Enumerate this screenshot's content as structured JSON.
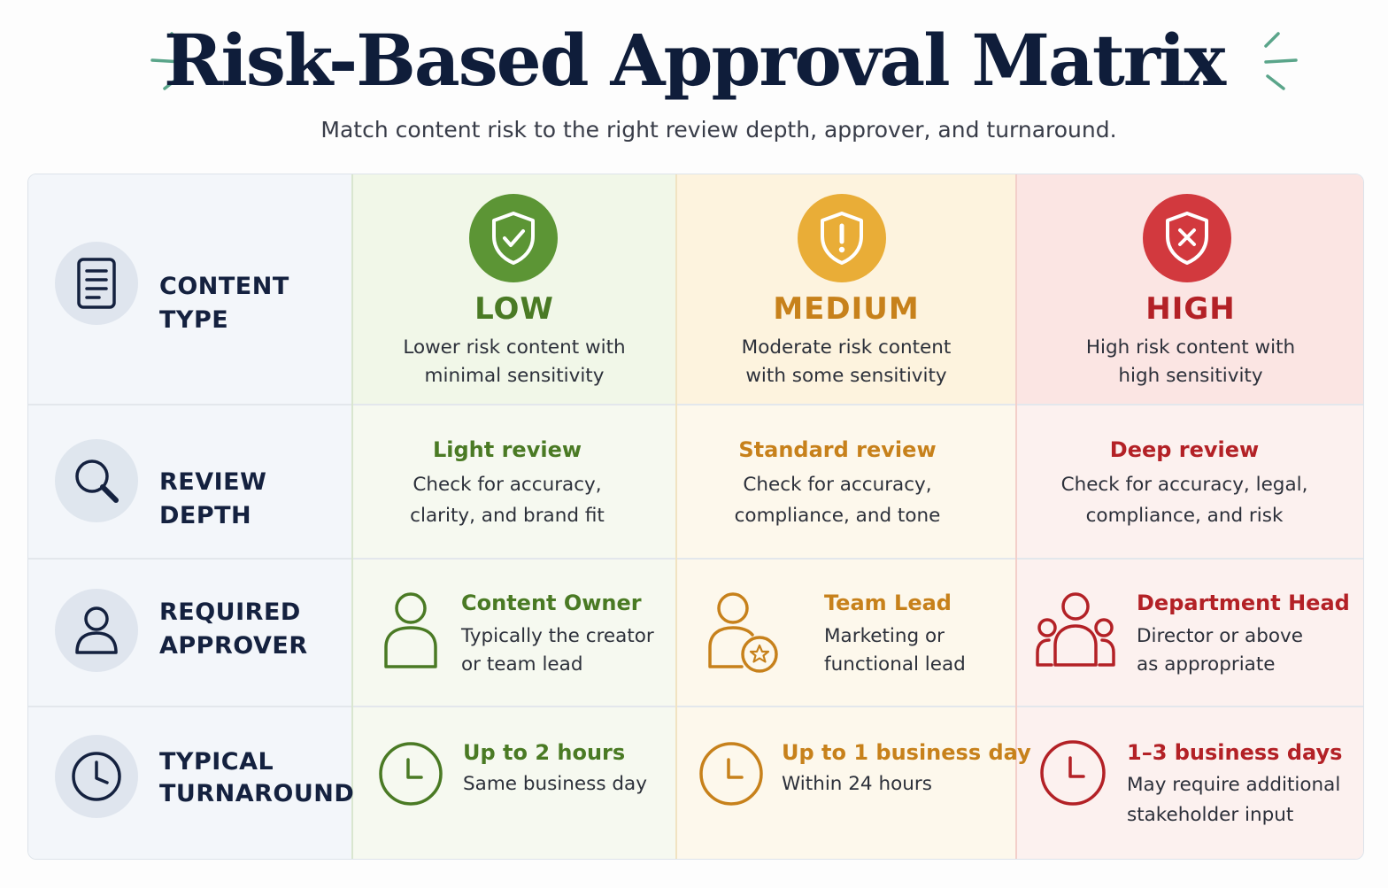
{
  "header": {
    "title": "Risk-Based Approval Matrix",
    "subtitle": "Match content risk to the right review depth, approver, and turnaround."
  },
  "colors": {
    "title": "#0f1d3a",
    "low": "#4a7a24",
    "medium": "#c7811b",
    "high": "#b32126",
    "label_circle": "#dfe5ee",
    "label_text": "#14213f"
  },
  "rows": {
    "content_type": {
      "label": "CONTENT TYPE",
      "icon": "document-icon"
    },
    "review_depth": {
      "label": "REVIEW DEPTH",
      "icon": "search-icon"
    },
    "required_approver": {
      "label_line1": "REQUIRED",
      "label_line2": "APPROVER",
      "icon": "user-icon"
    },
    "typical_turnaround": {
      "label_line1": "TYPICAL",
      "label_line2": "TURNAROUND",
      "icon": "clock-icon"
    }
  },
  "levels": {
    "low": {
      "name": "LOW",
      "badge_icon": "shield-check-icon",
      "desc_line1": "Lower risk content with",
      "desc_line2": "minimal sensitivity",
      "review_title": "Light review",
      "review_line1": "Check for accuracy,",
      "review_line2": "clarity, and brand fit",
      "approver_icon": "user-icon",
      "approver_title": "Content Owner",
      "approver_line1": "Typically the creator",
      "approver_line2": "or team lead",
      "turnaround_icon": "clock-icon",
      "turnaround_title": "Up to 2 hours",
      "turnaround_line1": "Same business day",
      "turnaround_line2": ""
    },
    "medium": {
      "name": "MEDIUM",
      "badge_icon": "shield-exclamation-icon",
      "desc_line1": "Moderate risk content",
      "desc_line2": "with some sensitivity",
      "review_title": "Standard review",
      "review_line1": "Check for accuracy,",
      "review_line2": "compliance, and tone",
      "approver_icon": "user-star-icon",
      "approver_title": "Team Lead",
      "approver_line1": "Marketing or",
      "approver_line2": "functional lead",
      "turnaround_icon": "clock-icon",
      "turnaround_title": "Up to 1 business day",
      "turnaround_line1": "Within 24 hours",
      "turnaround_line2": ""
    },
    "high": {
      "name": "HIGH",
      "badge_icon": "shield-x-icon",
      "desc_line1": "High risk content with",
      "desc_line2": "high sensitivity",
      "review_title": "Deep review",
      "review_line1": "Check for accuracy, legal,",
      "review_line2": "compliance, and risk",
      "approver_icon": "users-group-icon",
      "approver_title": "Department Head",
      "approver_line1": "Director or above",
      "approver_line2": "as appropriate",
      "turnaround_icon": "clock-icon",
      "turnaround_title": "1–3 business days",
      "turnaround_line1": "May require additional",
      "turnaround_line2": "stakeholder input"
    }
  }
}
